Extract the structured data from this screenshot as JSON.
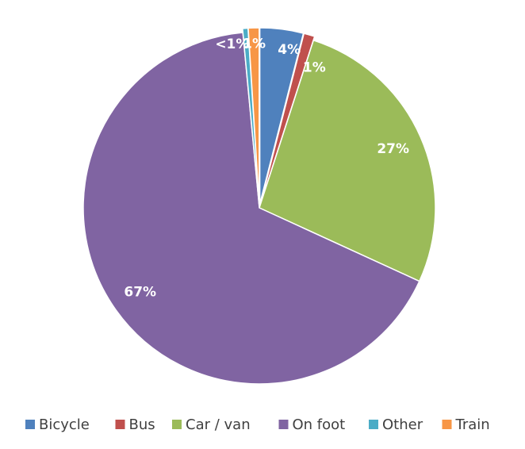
{
  "chart_data": {
    "type": "pie",
    "categories": [
      "Bicycle",
      "Bus",
      "Car / van",
      "On foot",
      "Other",
      "Train"
    ],
    "values": [
      4,
      1,
      27,
      67,
      0.5,
      1
    ],
    "value_labels": [
      "4%",
      "1%",
      "27%",
      "67%",
      "<1%",
      "1%"
    ],
    "colors": [
      "#4f81bd",
      "#c0504d",
      "#9bbb59",
      "#8064a2",
      "#4bacc6",
      "#f79646"
    ],
    "legend": "bottom"
  }
}
